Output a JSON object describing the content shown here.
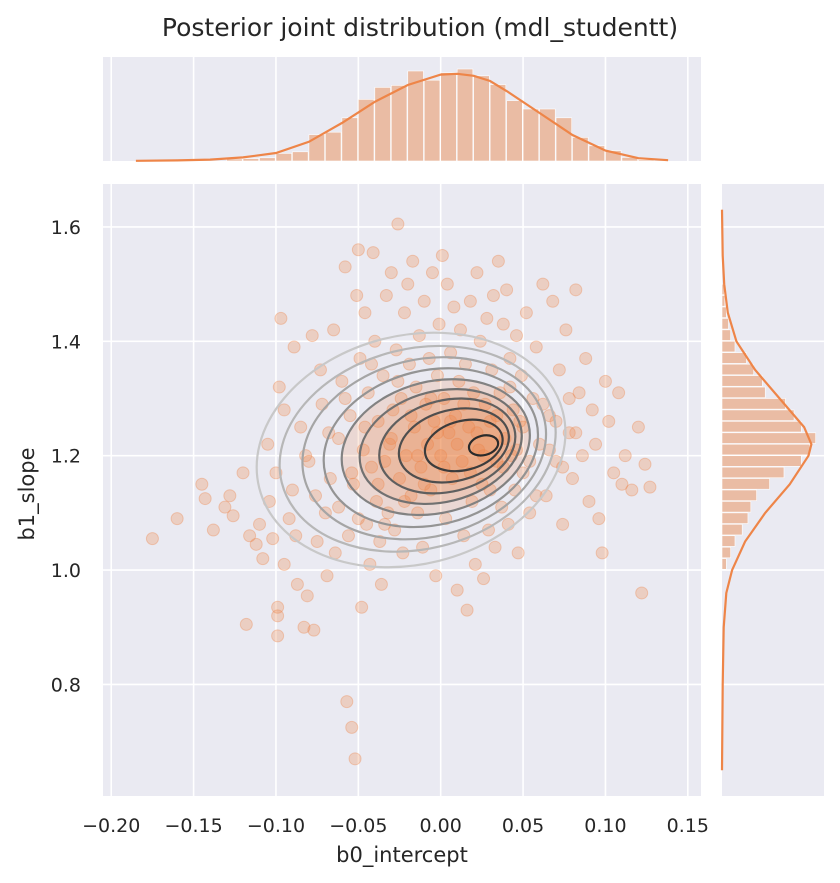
{
  "chart_data": {
    "type": "scatter",
    "title": "Posterior joint distribution (mdl_studentt)",
    "xlabel": "b0_intercept",
    "ylabel": "b1_slope",
    "xlim": [
      -0.205,
      0.158
    ],
    "ylim": [
      0.605,
      1.675
    ],
    "x_ticks": [
      {
        "value": -0.2,
        "label": "−0.20"
      },
      {
        "value": -0.15,
        "label": "−0.15"
      },
      {
        "value": -0.1,
        "label": "−0.10"
      },
      {
        "value": -0.05,
        "label": "−0.05"
      },
      {
        "value": 0.0,
        "label": "0.00"
      },
      {
        "value": 0.05,
        "label": "0.05"
      },
      {
        "value": 0.1,
        "label": "0.10"
      },
      {
        "value": 0.15,
        "label": "0.15"
      }
    ],
    "y_ticks": [
      {
        "value": 0.8,
        "label": "0.8"
      },
      {
        "value": 1.0,
        "label": "1.0"
      },
      {
        "value": 1.2,
        "label": "1.2"
      },
      {
        "value": 1.4,
        "label": "1.4"
      },
      {
        "value": 1.6,
        "label": "1.6"
      }
    ],
    "grid": true,
    "colors": {
      "points": "#ee8548",
      "hist": "#eab496",
      "kde_line": "#ee8548",
      "contour_dark": "#2b2b2b",
      "contour_light": "#c8c8c8",
      "panel_bg": "#eaeaf2",
      "grid": "#ffffff"
    },
    "scatter_points": [
      [
        -0.175,
        1.055
      ],
      [
        -0.16,
        1.09
      ],
      [
        -0.145,
        1.15
      ],
      [
        -0.143,
        1.125
      ],
      [
        -0.138,
        1.07
      ],
      [
        -0.131,
        1.11
      ],
      [
        -0.128,
        1.13
      ],
      [
        -0.126,
        1.095
      ],
      [
        -0.12,
        1.17
      ],
      [
        -0.118,
        0.905
      ],
      [
        -0.116,
        1.06
      ],
      [
        -0.112,
        1.045
      ],
      [
        -0.11,
        1.08
      ],
      [
        -0.108,
        1.02
      ],
      [
        -0.105,
        1.22
      ],
      [
        -0.104,
        1.12
      ],
      [
        -0.102,
        1.055
      ],
      [
        -0.1,
        1.17
      ],
      [
        -0.099,
        0.935
      ],
      [
        -0.099,
        0.92
      ],
      [
        -0.099,
        0.885
      ],
      [
        -0.098,
        1.32
      ],
      [
        -0.097,
        1.44
      ],
      [
        -0.095,
        1.01
      ],
      [
        -0.092,
        1.09
      ],
      [
        -0.09,
        1.14
      ],
      [
        -0.089,
        1.39
      ],
      [
        -0.087,
        0.975
      ],
      [
        -0.085,
        1.25
      ],
      [
        -0.083,
        0.9
      ],
      [
        -0.081,
        0.955
      ],
      [
        -0.08,
        1.19
      ],
      [
        -0.078,
        1.41
      ],
      [
        -0.077,
        0.895
      ],
      [
        -0.075,
        1.05
      ],
      [
        -0.073,
        1.35
      ],
      [
        -0.072,
        1.29
      ],
      [
        -0.07,
        1.1
      ],
      [
        -0.069,
        0.99
      ],
      [
        -0.067,
        1.16
      ],
      [
        -0.065,
        1.42
      ],
      [
        -0.064,
        1.03
      ],
      [
        -0.062,
        1.23
      ],
      [
        -0.06,
        1.33
      ],
      [
        -0.058,
        1.53
      ],
      [
        -0.057,
        0.77
      ],
      [
        -0.056,
        1.06
      ],
      [
        -0.055,
        1.27
      ],
      [
        -0.054,
        0.725
      ],
      [
        -0.053,
        1.15
      ],
      [
        -0.052,
        0.67
      ],
      [
        -0.051,
        1.48
      ],
      [
        -0.05,
        1.56
      ],
      [
        -0.049,
        1.37
      ],
      [
        -0.048,
        0.935
      ],
      [
        -0.047,
        1.21
      ],
      [
        -0.046,
        1.45
      ],
      [
        -0.045,
        1.08
      ],
      [
        -0.044,
        1.31
      ],
      [
        -0.043,
        1.01
      ],
      [
        -0.042,
        1.18
      ],
      [
        -0.041,
        1.555
      ],
      [
        -0.04,
        1.4
      ],
      [
        -0.039,
        1.12
      ],
      [
        -0.038,
        1.26
      ],
      [
        -0.037,
        1.05
      ],
      [
        -0.036,
        0.975
      ],
      [
        -0.035,
        1.34
      ],
      [
        -0.034,
        1.19
      ],
      [
        -0.033,
        1.48
      ],
      [
        -0.032,
        1.1
      ],
      [
        -0.031,
        1.22
      ],
      [
        -0.03,
        1.52
      ],
      [
        -0.029,
        1.28
      ],
      [
        -0.028,
        1.07
      ],
      [
        -0.027,
        1.385
      ],
      [
        -0.026,
        1.605
      ],
      [
        -0.025,
        1.16
      ],
      [
        -0.024,
        1.3
      ],
      [
        -0.023,
        1.03
      ],
      [
        -0.022,
        1.45
      ],
      [
        -0.021,
        1.2
      ],
      [
        -0.02,
        1.5
      ],
      [
        -0.019,
        1.36
      ],
      [
        -0.018,
        1.13
      ],
      [
        -0.017,
        1.54
      ],
      [
        -0.016,
        1.25
      ],
      [
        -0.015,
        1.32
      ],
      [
        -0.014,
        1.1
      ],
      [
        -0.013,
        1.41
      ],
      [
        -0.012,
        1.18
      ],
      [
        -0.011,
        1.04
      ],
      [
        -0.01,
        1.47
      ],
      [
        -0.009,
        1.29
      ],
      [
        -0.008,
        1.22
      ],
      [
        -0.007,
        1.37
      ],
      [
        -0.006,
        1.14
      ],
      [
        -0.005,
        1.52
      ],
      [
        -0.004,
        1.26
      ],
      [
        -0.003,
        0.99
      ],
      [
        -0.002,
        1.34
      ],
      [
        -0.001,
        1.43
      ],
      [
        0.0,
        1.2
      ],
      [
        0.001,
        1.55
      ],
      [
        0.002,
        1.3
      ],
      [
        0.003,
        1.09
      ],
      [
        0.004,
        1.5
      ],
      [
        0.005,
        1.24
      ],
      [
        0.006,
        1.38
      ],
      [
        0.007,
        1.16
      ],
      [
        0.008,
        1.46
      ],
      [
        0.009,
        1.27
      ],
      [
        0.01,
        0.965
      ],
      [
        0.011,
        1.33
      ],
      [
        0.012,
        1.42
      ],
      [
        0.013,
        1.19
      ],
      [
        0.014,
        1.06
      ],
      [
        0.015,
        1.36
      ],
      [
        0.016,
        0.93
      ],
      [
        0.017,
        1.25
      ],
      [
        0.018,
        1.47
      ],
      [
        0.019,
        1.12
      ],
      [
        0.02,
        1.31
      ],
      [
        0.021,
        1.01
      ],
      [
        0.022,
        1.52
      ],
      [
        0.023,
        1.21
      ],
      [
        0.024,
        1.4
      ],
      [
        0.025,
        1.15
      ],
      [
        0.026,
        0.985
      ],
      [
        0.027,
        1.29
      ],
      [
        0.028,
        1.44
      ],
      [
        0.029,
        1.07
      ],
      [
        0.03,
        1.26
      ],
      [
        0.031,
        1.35
      ],
      [
        0.032,
        1.48
      ],
      [
        0.033,
        1.04
      ],
      [
        0.034,
        1.19
      ],
      [
        0.035,
        1.54
      ],
      [
        0.036,
        1.31
      ],
      [
        0.037,
        1.11
      ],
      [
        0.038,
        1.43
      ],
      [
        0.039,
        1.23
      ],
      [
        0.04,
        1.49
      ],
      [
        0.041,
        1.08
      ],
      [
        0.042,
        1.37
      ],
      [
        0.043,
        1.2
      ],
      [
        0.044,
        1.28
      ],
      [
        0.045,
        1.14
      ],
      [
        0.046,
        1.41
      ],
      [
        0.047,
        1.03
      ],
      [
        0.048,
        1.26
      ],
      [
        0.049,
        1.34
      ],
      [
        0.05,
        1.17
      ],
      [
        0.052,
        1.45
      ],
      [
        0.054,
        1.1
      ],
      [
        0.056,
        1.3
      ],
      [
        0.058,
        1.39
      ],
      [
        0.06,
        1.22
      ],
      [
        0.062,
        1.5
      ],
      [
        0.064,
        1.13
      ],
      [
        0.066,
        1.27
      ],
      [
        0.068,
        1.47
      ],
      [
        0.07,
        1.19
      ],
      [
        0.072,
        1.35
      ],
      [
        0.074,
        1.08
      ],
      [
        0.076,
        1.42
      ],
      [
        0.078,
        1.24
      ],
      [
        0.08,
        1.16
      ],
      [
        0.082,
        1.49
      ],
      [
        0.084,
        1.31
      ],
      [
        0.086,
        1.2
      ],
      [
        0.088,
        1.37
      ],
      [
        0.09,
        1.12
      ],
      [
        0.092,
        1.28
      ],
      [
        0.094,
        1.22
      ],
      [
        0.096,
        1.09
      ],
      [
        0.098,
        1.03
      ],
      [
        0.1,
        1.33
      ],
      [
        0.102,
        1.26
      ],
      [
        0.105,
        1.17
      ],
      [
        0.108,
        1.31
      ],
      [
        0.11,
        1.15
      ],
      [
        0.112,
        1.2
      ],
      [
        0.116,
        1.14
      ],
      [
        0.12,
        1.25
      ],
      [
        0.122,
        0.96
      ],
      [
        0.124,
        1.185
      ],
      [
        0.127,
        1.145
      ],
      [
        -0.095,
        1.28
      ],
      [
        -0.088,
        1.06
      ],
      [
        -0.082,
        1.2
      ],
      [
        -0.076,
        1.13
      ],
      [
        -0.068,
        1.24
      ],
      [
        -0.062,
        1.11
      ],
      [
        -0.058,
        1.3
      ],
      [
        -0.054,
        1.17
      ],
      [
        -0.05,
        1.09
      ],
      [
        -0.046,
        1.25
      ],
      [
        -0.042,
        1.36
      ],
      [
        -0.038,
        1.15
      ],
      [
        -0.034,
        1.08
      ],
      [
        -0.03,
        1.23
      ],
      [
        -0.026,
        1.33
      ],
      [
        -0.022,
        1.12
      ],
      [
        -0.018,
        1.27
      ],
      [
        -0.014,
        1.2
      ],
      [
        -0.01,
        1.15
      ],
      [
        -0.006,
        1.3
      ],
      [
        -0.002,
        1.24
      ],
      [
        0.002,
        1.18
      ],
      [
        0.006,
        1.26
      ],
      [
        0.01,
        1.22
      ],
      [
        0.014,
        1.29
      ],
      [
        0.018,
        1.17
      ],
      [
        0.022,
        1.24
      ],
      [
        0.026,
        1.2
      ],
      [
        0.03,
        1.14
      ],
      [
        0.034,
        1.27
      ],
      [
        0.038,
        1.18
      ],
      [
        0.042,
        1.32
      ],
      [
        0.046,
        1.21
      ],
      [
        0.05,
        1.25
      ],
      [
        0.054,
        1.19
      ],
      [
        0.058,
        1.13
      ],
      [
        0.062,
        1.29
      ],
      [
        0.066,
        1.21
      ],
      [
        0.07,
        1.26
      ],
      [
        0.074,
        1.18
      ],
      [
        0.078,
        1.3
      ],
      [
        0.082,
        1.24
      ]
    ],
    "x_hist": {
      "bin_edges": [
        -0.17,
        -0.16,
        -0.15,
        -0.14,
        -0.13,
        -0.12,
        -0.11,
        -0.1,
        -0.09,
        -0.08,
        -0.07,
        -0.06,
        -0.05,
        -0.04,
        -0.03,
        -0.02,
        -0.01,
        0.0,
        0.01,
        0.02,
        0.03,
        0.04,
        0.05,
        0.06,
        0.07,
        0.08,
        0.09,
        0.1,
        0.11,
        0.12,
        0.13
      ],
      "density": [
        0.0,
        0.0,
        0.0,
        0.0,
        0.5,
        0.6,
        0.8,
        1.9,
        2.3,
        6.6,
        7.2,
        10.8,
        15.4,
        18.4,
        18.9,
        22.5,
        20.2,
        22.1,
        23.0,
        21.3,
        19.1,
        15.1,
        13.0,
        13.0,
        10.8,
        5.9,
        3.8,
        2.6,
        0.9,
        0.3
      ]
    },
    "x_kde": {
      "x": [
        -0.185,
        -0.16,
        -0.14,
        -0.12,
        -0.1,
        -0.08,
        -0.06,
        -0.04,
        -0.02,
        0.0,
        0.01,
        0.02,
        0.03,
        0.04,
        0.06,
        0.08,
        0.1,
        0.12,
        0.138
      ],
      "density": [
        0.05,
        0.15,
        0.35,
        0.9,
        2.0,
        4.8,
        9.5,
        14.8,
        19.0,
        21.6,
        21.8,
        21.3,
        20.0,
        17.5,
        12.0,
        6.5,
        2.6,
        0.7,
        0.2
      ]
    },
    "y_hist": {
      "bin_edges": [
        1.0,
        1.02,
        1.04,
        1.06,
        1.08,
        1.1,
        1.12,
        1.14,
        1.16,
        1.18,
        1.2,
        1.22,
        1.24,
        1.26,
        1.28,
        1.3,
        1.32,
        1.34,
        1.36,
        1.38,
        1.4,
        1.42,
        1.44,
        1.46,
        1.48,
        1.5
      ],
      "density": [
        0.3,
        0.6,
        0.9,
        1.4,
        1.8,
        2.0,
        2.4,
        3.3,
        4.3,
        5.5,
        6.1,
        6.5,
        5.5,
        5.0,
        4.4,
        3.0,
        2.8,
        2.2,
        1.7,
        0.9,
        0.6,
        0.45,
        0.3,
        0.2,
        0.15
      ]
    },
    "y_kde": {
      "y": [
        0.65,
        0.8,
        0.9,
        0.96,
        1.0,
        1.05,
        1.1,
        1.15,
        1.2,
        1.22,
        1.25,
        1.3,
        1.35,
        1.4,
        1.45,
        1.5,
        1.55,
        1.63
      ],
      "density": [
        0.0,
        0.05,
        0.12,
        0.3,
        0.7,
        1.6,
        3.0,
        4.7,
        6.0,
        6.2,
        5.7,
        4.0,
        2.3,
        1.0,
        0.4,
        0.15,
        0.05,
        0.0
      ]
    },
    "kde_contours": [
      {
        "level": 1,
        "cx": -0.018,
        "cy": 1.21,
        "rx": 0.095,
        "ry": 0.2,
        "rot": -14
      },
      {
        "level": 2,
        "cx": -0.014,
        "cy": 1.212,
        "rx": 0.085,
        "ry": 0.175,
        "rot": -14
      },
      {
        "level": 3,
        "cx": -0.01,
        "cy": 1.213,
        "rx": 0.075,
        "ry": 0.155,
        "rot": -14
      },
      {
        "level": 4,
        "cx": -0.006,
        "cy": 1.214,
        "rx": 0.066,
        "ry": 0.135,
        "rot": -14
      },
      {
        "level": 5,
        "cx": -0.003,
        "cy": 1.215,
        "rx": 0.058,
        "ry": 0.115,
        "rot": -14
      },
      {
        "level": 6,
        "cx": 0.0,
        "cy": 1.216,
        "rx": 0.05,
        "ry": 0.097,
        "rot": -14
      },
      {
        "level": 7,
        "cx": 0.004,
        "cy": 1.217,
        "rx": 0.042,
        "ry": 0.08,
        "rot": -14
      },
      {
        "level": 8,
        "cx": 0.008,
        "cy": 1.218,
        "rx": 0.034,
        "ry": 0.062,
        "rot": -14
      },
      {
        "level": 9,
        "cx": 0.014,
        "cy": 1.218,
        "rx": 0.024,
        "ry": 0.043,
        "rot": -14
      },
      {
        "level": 10,
        "cx": 0.026,
        "cy": 1.218,
        "rx": 0.009,
        "ry": 0.017,
        "rot": -14
      }
    ]
  }
}
